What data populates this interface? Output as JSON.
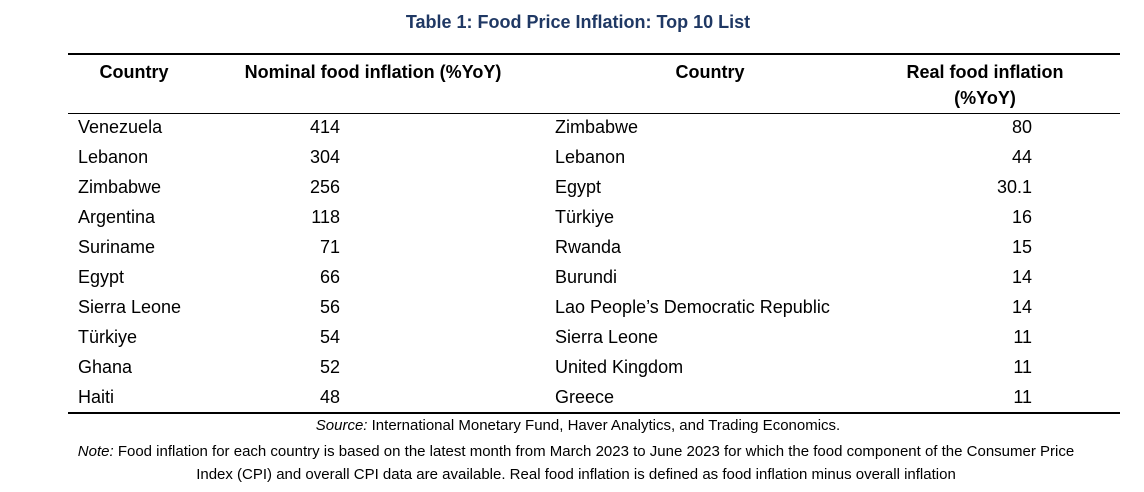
{
  "title": "Table 1: Food Price Inflation: Top 10 List",
  "headers": {
    "country_left": "Country",
    "nominal": "Nominal food inflation (%YoY)",
    "country_right": "Country",
    "real_line1": "Real food inflation",
    "real_line2": "(%YoY)"
  },
  "rows": [
    {
      "nominal_country": "Venezuela",
      "nominal_value": "414",
      "real_country": "Zimbabwe",
      "real_value": "80"
    },
    {
      "nominal_country": "Lebanon",
      "nominal_value": "304",
      "real_country": "Lebanon",
      "real_value": "44"
    },
    {
      "nominal_country": "Zimbabwe",
      "nominal_value": "256",
      "real_country": "Egypt",
      "real_value": "30.1"
    },
    {
      "nominal_country": "Argentina",
      "nominal_value": "118",
      "real_country": "Türkiye",
      "real_value": "16"
    },
    {
      "nominal_country": "Suriname",
      "nominal_value": "71",
      "real_country": "Rwanda",
      "real_value": "15"
    },
    {
      "nominal_country": "Egypt",
      "nominal_value": "66",
      "real_country": "Burundi",
      "real_value": "14"
    },
    {
      "nominal_country": "Sierra Leone",
      "nominal_value": "56",
      "real_country": "Lao People’s Democratic Republic",
      "real_value": "14"
    },
    {
      "nominal_country": "Türkiye",
      "nominal_value": "54",
      "real_country": "Sierra Leone",
      "real_value": "11"
    },
    {
      "nominal_country": "Ghana",
      "nominal_value": "52",
      "real_country": "United Kingdom",
      "real_value": "11"
    },
    {
      "nominal_country": "Haiti",
      "nominal_value": "48",
      "real_country": "Greece",
      "real_value": "11"
    }
  ],
  "source": {
    "label": "Source:",
    "text": " International Monetary Fund, Haver Analytics, and Trading Economics."
  },
  "note": {
    "label": "Note:",
    "text": " Food inflation for each country is based on the latest month from March 2023 to June 2023 for which the food component of the Consumer Price Index (CPI) and overall CPI data are available. Real food inflation is defined as food inflation minus overall inflation"
  }
}
